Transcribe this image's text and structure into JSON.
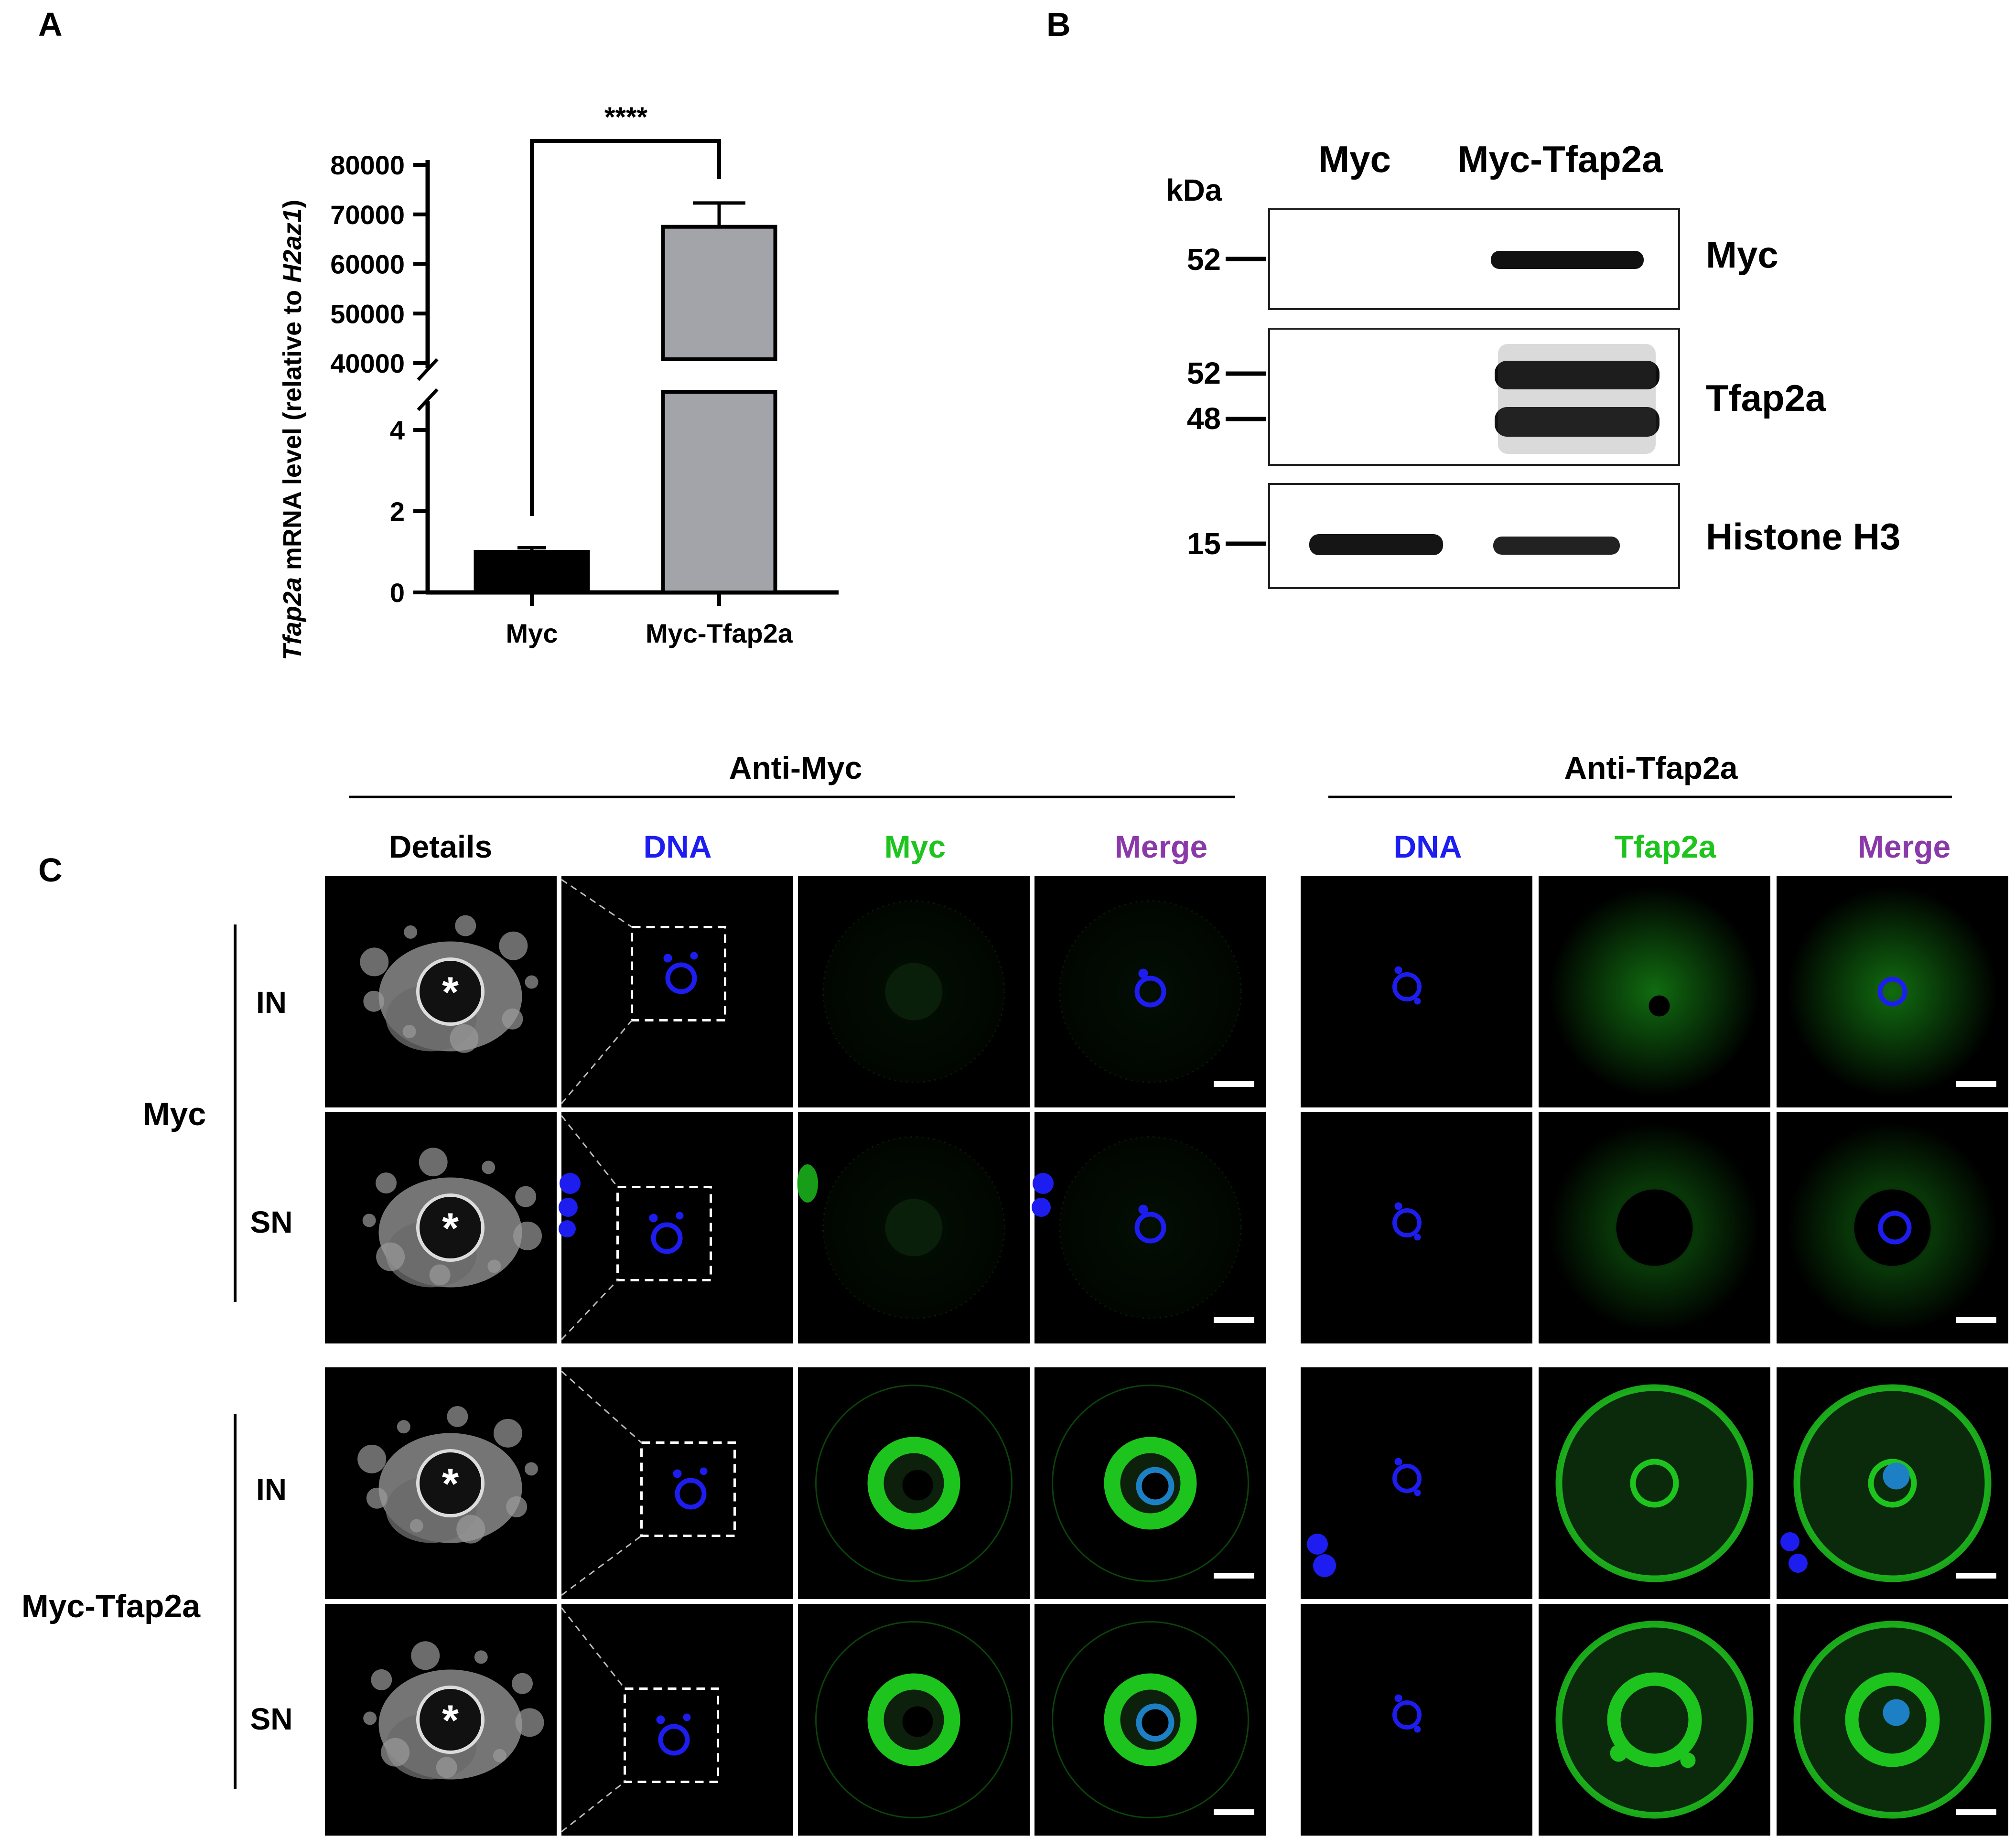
{
  "panel_labels": {
    "a": "A",
    "b": "B",
    "c": "C"
  },
  "colors": {
    "dna": "#1d1df0",
    "green": "#1ec41e",
    "merge": "#8a3aa8",
    "bar_myc": "#000000",
    "bar_tfap2a": "#a3a3aa"
  },
  "panel_a": {
    "ylabel_gene": "Tfap2a",
    "ylabel_mid": " mRNA level (relative to ",
    "ylabel_ref": "H2az1",
    "ylabel_end": ")",
    "significance": "****"
  },
  "chart_data": {
    "type": "bar",
    "title": "",
    "xlabel": "",
    "ylabel": "Tfap2a mRNA level (relative to H2az1)",
    "categories": [
      "Myc",
      "Myc-Tfap2a"
    ],
    "values": [
      1,
      67500
    ],
    "errors": [
      0.1,
      4800
    ],
    "y_axis_break": {
      "lower_range": [
        0,
        5
      ],
      "upper_range": [
        40000,
        80000
      ]
    },
    "yticks_lower": [
      "0",
      "2",
      "4"
    ],
    "yticks_upper": [
      "40000",
      "50000",
      "60000",
      "70000",
      "80000"
    ],
    "significance": "****"
  },
  "panel_b": {
    "unit": "kDa",
    "lanes": [
      "Myc",
      "Myc-Tfap2a"
    ],
    "blots": [
      {
        "antibody": "Myc",
        "markers": [
          "52"
        ]
      },
      {
        "antibody": "Tfap2a",
        "markers": [
          "52",
          "48"
        ]
      },
      {
        "antibody": "Histone H3",
        "markers": [
          "15"
        ]
      }
    ]
  },
  "panel_c": {
    "group_anti_myc": "Anti-Myc",
    "group_anti_tfap2a": "Anti-Tfap2a",
    "col_details": "Details",
    "col_dna": "DNA",
    "col_myc": "Myc",
    "col_merge": "Merge",
    "col_dna2": "DNA",
    "col_tfap2a": "Tfap2a",
    "col_merge2": "Merge",
    "groups": [
      "Myc",
      "Myc-Tfap2a"
    ],
    "rows": [
      "IN",
      "SN",
      "IN",
      "SN"
    ],
    "asterisk": "*"
  }
}
